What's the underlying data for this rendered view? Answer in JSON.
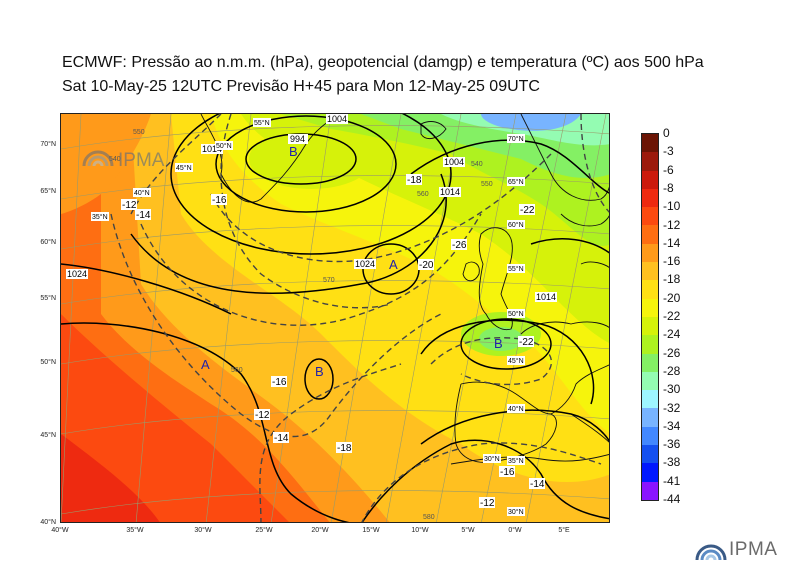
{
  "title": {
    "line1": "ECMWF:  Pressão ao n.m.m. (hPa), geopotencial (damgp) e temperatura (ºC) aos 500 hPa",
    "line2": "Sat 10-May-25 12UTC Previsão H+45 para Mon 12-May-25 09UTC"
  },
  "map": {
    "lat_labels_left": [
      "70°N",
      "65°N",
      "60°N",
      "55°N",
      "50°N",
      "45°N",
      "40°N"
    ],
    "lon_labels_bottom": [
      "40°W",
      "35°W",
      "30°W",
      "25°W",
      "20°W",
      "15°W",
      "10°W",
      "5°W",
      "0°W",
      "5°E"
    ],
    "inner_grid_labels": [
      "55°N",
      "50°N",
      "45°N",
      "40°N",
      "35°N",
      "30°N",
      "70°N",
      "65°N",
      "60°N",
      "55°N",
      "50°N",
      "45°N",
      "40°N",
      "35°N",
      "30°N"
    ],
    "pressure_labels": [
      "994",
      "1004",
      "1014",
      "1024",
      "1014",
      "1004",
      "1024",
      "1014"
    ],
    "geopotential_labels": [
      "540",
      "550",
      "560",
      "570",
      "580",
      "560",
      "540",
      "550"
    ],
    "temperature_labels": [
      "-12",
      "-14",
      "-16",
      "-18",
      "-20",
      "-22",
      "-26",
      "-22",
      "-16",
      "-14",
      "-12",
      "-18",
      "-14",
      "-12",
      "-16"
    ],
    "highs": [
      "A",
      "A"
    ],
    "lows": [
      "B",
      "B",
      "B"
    ],
    "watermark": "IPMA",
    "colors": {
      "land_line": "#111111",
      "isobar": "#000000",
      "geopotential": "#444444"
    }
  },
  "colorbar": {
    "labels": [
      "0",
      "-3",
      "-6",
      "-8",
      "-10",
      "-12",
      "-14",
      "-16",
      "-18",
      "-20",
      "-22",
      "-24",
      "-26",
      "-28",
      "-30",
      "-32",
      "-34",
      "-36",
      "-38",
      "-41",
      "-44"
    ],
    "colors": [
      "#6b1404",
      "#9c1a0c",
      "#cc1a0c",
      "#ee2a10",
      "#fc4a10",
      "#fe6e12",
      "#ff9a1a",
      "#ffc020",
      "#ffe014",
      "#f6f40c",
      "#d6f20a",
      "#aef220",
      "#84f064",
      "#94fcb2",
      "#9ef6ff",
      "#78b4ff",
      "#4288ff",
      "#1450f0",
      "#0018ff",
      "#8a14ff",
      "#ff1ef0"
    ]
  },
  "logo": {
    "text": "IPMA"
  }
}
